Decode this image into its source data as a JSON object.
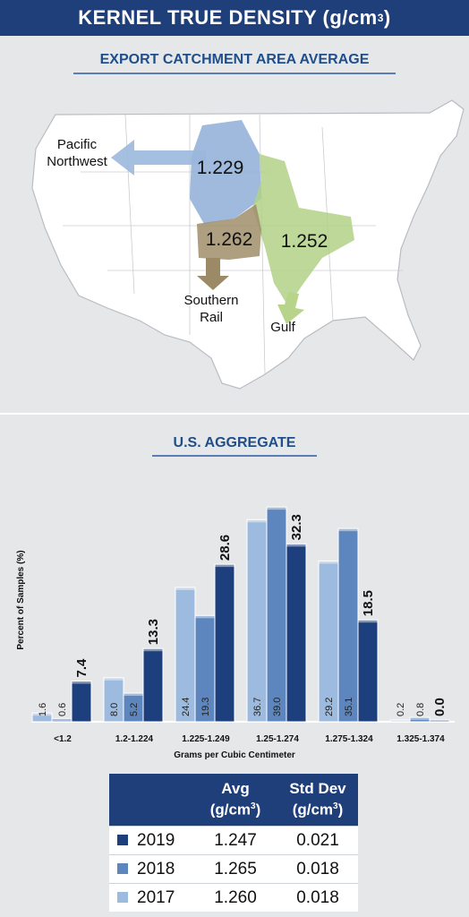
{
  "header": {
    "title": "KERNEL TRUE DENSITY (g/cm",
    "title_sup": "3",
    "title_end": ")"
  },
  "map_section": {
    "title": "EXPORT CATCHMENT AREA AVERAGE",
    "regions": [
      {
        "name": "Pacific Northwest",
        "label_lines": [
          "Pacific",
          "Northwest"
        ],
        "value": "1.229",
        "color": "#8eaed6"
      },
      {
        "name": "Southern Rail",
        "label_lines": [
          "Southern",
          "Rail"
        ],
        "value": "1.262",
        "color": "#a08e6b"
      },
      {
        "name": "Gulf",
        "label_lines": [
          "Gulf"
        ],
        "value": "1.252",
        "color": "#a9c97a"
      }
    ]
  },
  "aggregate_section": {
    "title": "U.S. AGGREGATE"
  },
  "chart_data": {
    "type": "bar",
    "title": "U.S. AGGREGATE",
    "xlabel": "Grams per Cubic Centimeter",
    "ylabel": "Percent of Samples (%)",
    "categories": [
      "<1.2",
      "1.2-1.224",
      "1.225-1.249",
      "1.25-1.274",
      "1.275-1.324",
      "1.325-1.374"
    ],
    "ylim": [
      0,
      40
    ],
    "grid": false,
    "series": [
      {
        "name": "2017",
        "color": "#9dbbdf",
        "values": [
          1.6,
          8.0,
          24.4,
          36.7,
          29.2,
          0.2
        ],
        "labels": [
          "1.6",
          "8.0",
          "24.4",
          "36.7",
          "29.2",
          "0.2"
        ]
      },
      {
        "name": "2018",
        "color": "#5c86bd",
        "values": [
          0.6,
          5.2,
          19.3,
          39.0,
          35.1,
          0.8
        ],
        "labels": [
          "0.6",
          "5.2",
          "19.3",
          "39.0",
          "35.1",
          "0.8"
        ]
      },
      {
        "name": "2019",
        "color": "#1d3f7d",
        "values": [
          7.4,
          13.3,
          28.6,
          32.3,
          18.5,
          0.0
        ],
        "labels": [
          "7.4",
          "13.3",
          "28.6",
          "32.3",
          "18.5",
          "0.0"
        ]
      }
    ]
  },
  "stats_table": {
    "headers": {
      "avg": [
        "Avg",
        "(g/cm",
        "3",
        ")"
      ],
      "std": [
        "Std Dev",
        "(g/cm",
        "3",
        ")"
      ]
    },
    "rows": [
      {
        "year": "2019",
        "avg": "1.247",
        "std": "0.021",
        "color": "#1d3f7d"
      },
      {
        "year": "2018",
        "avg": "1.265",
        "std": "0.018",
        "color": "#5c86bd"
      },
      {
        "year": "2017",
        "avg": "1.260",
        "std": "0.018",
        "color": "#9dbbdf"
      }
    ]
  }
}
